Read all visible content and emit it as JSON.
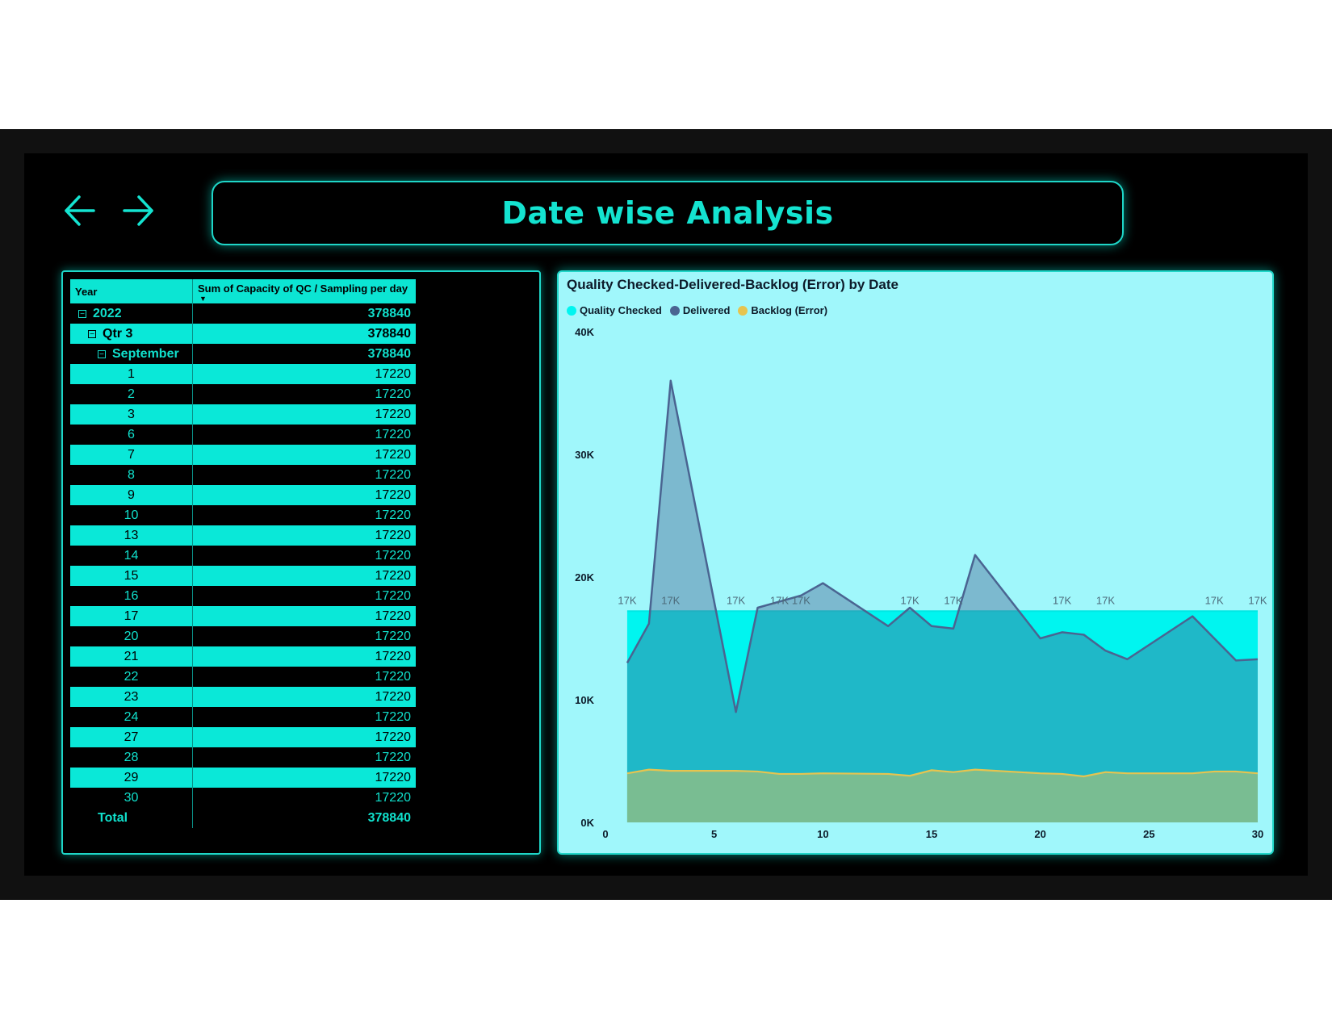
{
  "header": {
    "title": "Date wise Analysis",
    "back_icon": "arrow-left-icon",
    "forward_icon": "arrow-right-icon",
    "accent_color": "#14e3d0"
  },
  "matrix": {
    "col_year": "Year",
    "col_value": "Sum of Capacity of QC / Sampling per day",
    "year": {
      "label": "2022",
      "value": "378840"
    },
    "quarter": {
      "label": "Qtr 3",
      "value": "378840"
    },
    "month": {
      "label": "September",
      "value": "378840"
    },
    "days": [
      {
        "label": "1",
        "value": "17220"
      },
      {
        "label": "2",
        "value": "17220"
      },
      {
        "label": "3",
        "value": "17220"
      },
      {
        "label": "6",
        "value": "17220"
      },
      {
        "label": "7",
        "value": "17220"
      },
      {
        "label": "8",
        "value": "17220"
      },
      {
        "label": "9",
        "value": "17220"
      },
      {
        "label": "10",
        "value": "17220"
      },
      {
        "label": "13",
        "value": "17220"
      },
      {
        "label": "14",
        "value": "17220"
      },
      {
        "label": "15",
        "value": "17220"
      },
      {
        "label": "16",
        "value": "17220"
      },
      {
        "label": "17",
        "value": "17220"
      },
      {
        "label": "20",
        "value": "17220"
      },
      {
        "label": "21",
        "value": "17220"
      },
      {
        "label": "22",
        "value": "17220"
      },
      {
        "label": "23",
        "value": "17220"
      },
      {
        "label": "24",
        "value": "17220"
      },
      {
        "label": "27",
        "value": "17220"
      },
      {
        "label": "28",
        "value": "17220"
      },
      {
        "label": "29",
        "value": "17220"
      },
      {
        "label": "30",
        "value": "17220"
      }
    ],
    "total": {
      "label": "Total",
      "value": "378840"
    }
  },
  "chart_data": {
    "type": "area",
    "title": "Quality Checked-Delivered-Backlog (Error) by Date",
    "xlabel": "",
    "ylabel": "",
    "xlim": [
      0,
      30
    ],
    "ylim": [
      0,
      40000
    ],
    "x_ticks": [
      0,
      5,
      10,
      15,
      20,
      25,
      30
    ],
    "y_ticks": [
      0,
      10000,
      20000,
      30000,
      40000
    ],
    "y_tick_labels": [
      "0K",
      "10K",
      "20K",
      "30K",
      "40K"
    ],
    "legend_position": "top-left",
    "series": [
      {
        "name": "Quality Checked",
        "color": "#00f5f0",
        "x": [
          1,
          30
        ],
        "values": [
          17220,
          17220
        ],
        "data_labels": [
          {
            "x": 1,
            "label": "17K"
          },
          {
            "x": 3,
            "label": "17K"
          },
          {
            "x": 6,
            "label": "17K"
          },
          {
            "x": 8,
            "label": "17K"
          },
          {
            "x": 9,
            "label": "17K"
          },
          {
            "x": 14,
            "label": "17K"
          },
          {
            "x": 16,
            "label": "17K"
          },
          {
            "x": 21,
            "label": "17K"
          },
          {
            "x": 23,
            "label": "17K"
          },
          {
            "x": 28,
            "label": "17K"
          },
          {
            "x": 30,
            "label": "17K"
          }
        ]
      },
      {
        "name": "Delivered",
        "color": "#4a6491",
        "x": [
          1,
          2,
          3,
          6,
          7,
          8,
          9,
          10,
          13,
          14,
          15,
          16,
          17,
          20,
          21,
          22,
          23,
          24,
          27,
          28,
          29,
          30
        ],
        "values": [
          13000,
          16200,
          36000,
          9000,
          17500,
          18000,
          18500,
          19500,
          16000,
          17500,
          16000,
          15800,
          21800,
          15000,
          15500,
          15300,
          14000,
          13300,
          16800,
          15000,
          13200,
          13300
        ]
      },
      {
        "name": "Backlog (Error)",
        "color": "#e6c44f",
        "x": [
          1,
          2,
          3,
          6,
          7,
          8,
          9,
          10,
          13,
          14,
          15,
          16,
          17,
          20,
          21,
          22,
          23,
          24,
          27,
          28,
          29,
          30
        ],
        "values": [
          4000,
          4300,
          4200,
          4200,
          4150,
          3950,
          3950,
          4000,
          3950,
          3800,
          4250,
          4100,
          4300,
          4000,
          3950,
          3750,
          4100,
          4000,
          4000,
          4150,
          4150,
          4000
        ]
      }
    ]
  }
}
